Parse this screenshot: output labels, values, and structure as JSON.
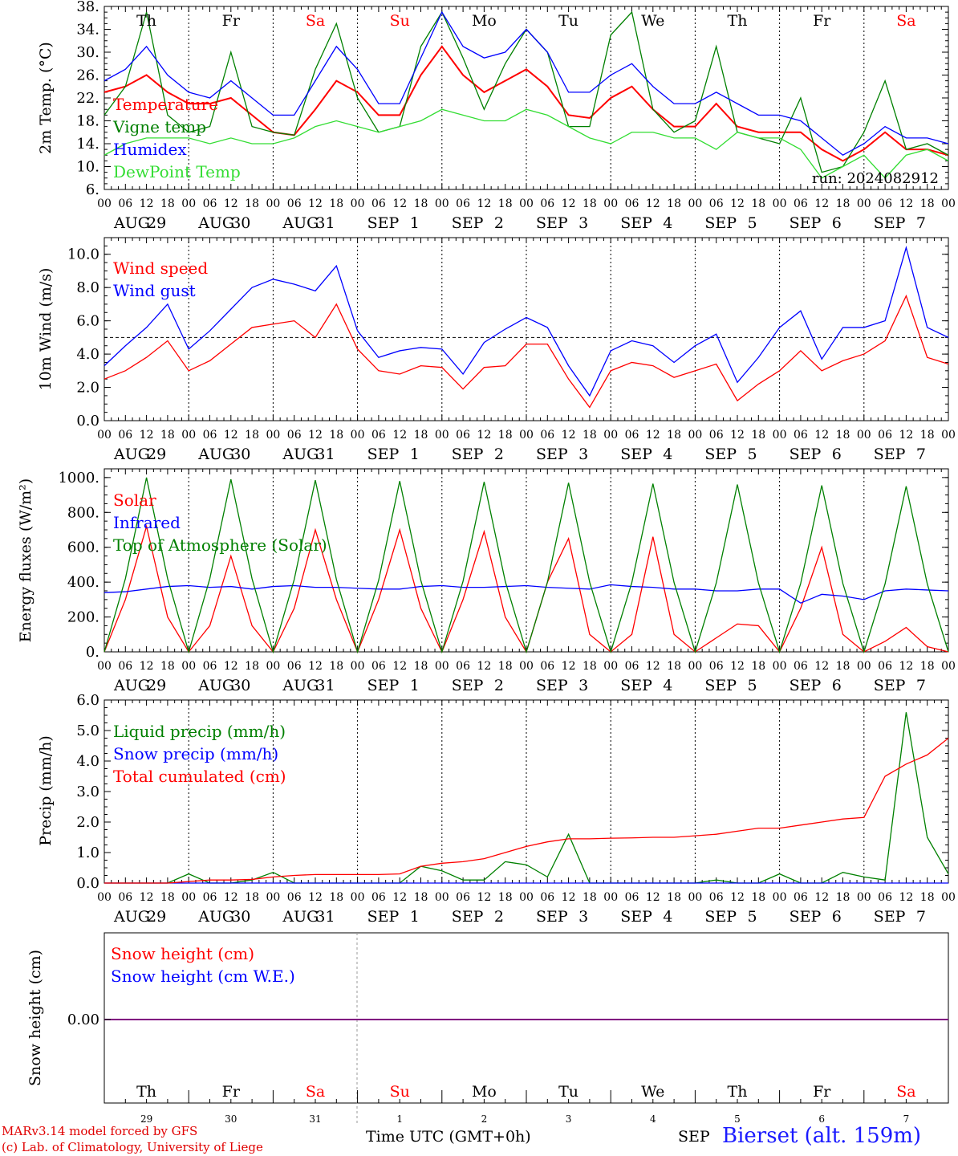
{
  "days": {
    "weekdays": [
      "Th",
      "Fr",
      "Sa",
      "Su",
      "Mo",
      "Tu",
      "We",
      "Th",
      "Fr",
      "Sa"
    ],
    "weekend_flags": [
      false,
      false,
      true,
      true,
      false,
      false,
      false,
      false,
      false,
      true
    ],
    "dates": [
      "AUG 29",
      "AUG 30",
      "AUG 31",
      "SEP 1",
      "SEP 2",
      "SEP 3",
      "SEP 4",
      "SEP 5",
      "SEP 6",
      "SEP 7"
    ],
    "day_numbers": [
      "29",
      "30",
      "31",
      "1",
      "2",
      "3",
      "4",
      "5",
      "6",
      "7"
    ],
    "hour_ticks": [
      "00",
      "06",
      "12",
      "18"
    ],
    "last_tick": "00"
  },
  "colors": {
    "red": "#ff0000",
    "green": "#008000",
    "blue": "#0000ff",
    "lightgreen": "#33dd33",
    "weekend": "#ff0000",
    "purple": "#800080"
  },
  "footer": {
    "credit_line1": "MARv3.14 model forced by GFS",
    "credit_line2": "(c) Lab. of Climatology, University of Liege",
    "time_label": "Time UTC (GMT+0h)",
    "month_label": "SEP",
    "station": "Bierset (alt. 159m)"
  },
  "chart_data": [
    {
      "type": "line",
      "ylabel": "2m Temp. (°C)",
      "ylim": [
        6,
        38
      ],
      "yticks": [
        "6.",
        "10.",
        "14.",
        "18.",
        "22.",
        "26.",
        "30.",
        "34.",
        "38."
      ],
      "annotation": "run: 2024082912",
      "x_hours": [
        0,
        6,
        12,
        18,
        24,
        30,
        36,
        42,
        48,
        54,
        60,
        66,
        72,
        78,
        84,
        90,
        96,
        102,
        108,
        114,
        120,
        126,
        132,
        138,
        144,
        150,
        156,
        162,
        168,
        174,
        180,
        186,
        192,
        198,
        204,
        210,
        216,
        222,
        228,
        234,
        240
      ],
      "series": [
        {
          "name": "Temperature",
          "color": "red",
          "values": [
            23,
            24,
            26,
            23,
            21,
            21,
            22,
            19,
            16,
            15.5,
            20,
            25,
            23,
            19,
            19,
            26,
            31,
            26,
            23,
            25,
            27,
            24,
            19,
            18.5,
            22,
            24,
            20,
            17,
            17,
            21,
            17,
            16,
            16,
            16,
            13,
            11,
            13,
            16,
            13,
            13,
            12
          ]
        },
        {
          "name": "Vigne temp",
          "color": "green",
          "values": [
            19,
            24,
            37,
            19,
            16,
            17,
            30,
            17,
            16,
            15.5,
            27,
            35,
            22,
            16,
            17,
            31,
            37,
            29,
            20,
            28,
            34,
            30,
            17,
            17,
            33,
            37,
            20,
            16,
            18,
            31,
            16,
            15,
            14,
            22,
            9,
            10,
            16,
            25,
            13,
            14,
            12
          ]
        },
        {
          "name": "Humidex",
          "color": "blue",
          "values": [
            25,
            27,
            31,
            26,
            23,
            22,
            25,
            22,
            19,
            19,
            25,
            31,
            27,
            21,
            21,
            29,
            37,
            31,
            29,
            30,
            34,
            30,
            23,
            23,
            26,
            28,
            24,
            21,
            21,
            23,
            21,
            19,
            19,
            18,
            15,
            12,
            14,
            17,
            15,
            15,
            14
          ]
        },
        {
          "name": "DewPoint Temp",
          "color": "lightgreen",
          "values": [
            12,
            14,
            15,
            15,
            15,
            14,
            15,
            14,
            14,
            15,
            17,
            18,
            17,
            16,
            17,
            18,
            20,
            19,
            18,
            18,
            20,
            19,
            17,
            15,
            14,
            16,
            16,
            15,
            15,
            13,
            16,
            15,
            15,
            13,
            8,
            10,
            12,
            8,
            12,
            13,
            11
          ]
        }
      ]
    },
    {
      "type": "line",
      "ylabel": "10m Wind (m/s)",
      "ylim": [
        0,
        11
      ],
      "yticks": [
        "0.0",
        "2.0",
        "4.0",
        "6.0",
        "8.0",
        "10.0"
      ],
      "reference_line": 5.0,
      "x_hours": [
        0,
        6,
        12,
        18,
        24,
        30,
        36,
        42,
        48,
        54,
        60,
        66,
        72,
        78,
        84,
        90,
        96,
        102,
        108,
        114,
        120,
        126,
        132,
        138,
        144,
        150,
        156,
        162,
        168,
        174,
        180,
        186,
        192,
        198,
        204,
        210,
        216,
        222,
        228,
        234,
        240
      ],
      "series": [
        {
          "name": "Wind speed",
          "color": "red",
          "values": [
            2.5,
            3.0,
            3.8,
            4.8,
            3.0,
            3.6,
            4.6,
            5.6,
            5.8,
            6.0,
            5.0,
            7.0,
            4.3,
            3.0,
            2.8,
            3.3,
            3.2,
            1.9,
            3.2,
            3.3,
            4.6,
            4.6,
            2.5,
            0.8,
            3.0,
            3.5,
            3.3,
            2.6,
            3.0,
            3.4,
            1.2,
            2.2,
            3.0,
            4.2,
            3.0,
            3.6,
            4.0,
            4.8,
            7.5,
            3.8,
            3.4
          ]
        },
        {
          "name": "Wind gust",
          "color": "blue",
          "values": [
            3.3,
            4.5,
            5.6,
            7.0,
            4.3,
            5.4,
            6.7,
            8.0,
            8.5,
            8.2,
            7.8,
            9.3,
            5.4,
            3.8,
            4.2,
            4.4,
            4.3,
            2.8,
            4.7,
            5.5,
            6.2,
            5.6,
            3.3,
            1.5,
            4.2,
            4.8,
            4.5,
            3.5,
            4.5,
            5.2,
            2.3,
            3.8,
            5.6,
            6.6,
            3.7,
            5.6,
            5.6,
            6.0,
            10.4,
            5.6,
            5.0
          ]
        }
      ]
    },
    {
      "type": "line",
      "ylabel": "Energy fluxes (W/m²)",
      "ylim": [
        0,
        1050
      ],
      "yticks": [
        "0.",
        "200.",
        "400.",
        "600.",
        "800.",
        "1000."
      ],
      "x_hours": [
        0,
        6,
        12,
        18,
        24,
        30,
        36,
        42,
        48,
        54,
        60,
        66,
        72,
        78,
        84,
        90,
        96,
        102,
        108,
        114,
        120,
        126,
        132,
        138,
        144,
        150,
        156,
        162,
        168,
        174,
        180,
        186,
        192,
        198,
        204,
        210,
        216,
        222,
        228,
        234,
        240
      ],
      "series": [
        {
          "name": "Solar",
          "color": "red",
          "values": [
            0,
            300,
            720,
            200,
            0,
            150,
            550,
            150,
            0,
            250,
            700,
            300,
            0,
            300,
            700,
            250,
            0,
            300,
            690,
            200,
            0,
            400,
            650,
            100,
            0,
            100,
            660,
            100,
            0,
            80,
            160,
            150,
            0,
            250,
            600,
            100,
            0,
            60,
            140,
            30,
            0
          ]
        },
        {
          "name": "Infrared",
          "color": "blue",
          "values": [
            340,
            345,
            360,
            375,
            380,
            370,
            375,
            360,
            375,
            380,
            370,
            370,
            365,
            360,
            360,
            375,
            380,
            370,
            370,
            375,
            380,
            370,
            365,
            360,
            385,
            375,
            370,
            360,
            360,
            350,
            350,
            360,
            360,
            280,
            330,
            320,
            300,
            350,
            360,
            355,
            350
          ]
        },
        {
          "name": "Top of Atmosphere (Solar)",
          "color": "green",
          "values": [
            0,
            420,
            1000,
            420,
            0,
            420,
            990,
            420,
            0,
            415,
            985,
            415,
            0,
            410,
            980,
            410,
            0,
            405,
            975,
            405,
            0,
            400,
            970,
            400,
            0,
            398,
            965,
            398,
            0,
            395,
            960,
            395,
            0,
            392,
            955,
            392,
            0,
            390,
            950,
            390,
            0
          ]
        }
      ]
    },
    {
      "type": "line",
      "ylabel": "Precip (mm/h)",
      "ylim": [
        0,
        6
      ],
      "yticks": [
        "0.0",
        "1.0",
        "2.0",
        "3.0",
        "4.0",
        "5.0",
        "6.0"
      ],
      "x_hours": [
        0,
        6,
        12,
        18,
        24,
        30,
        36,
        42,
        48,
        54,
        60,
        66,
        72,
        78,
        84,
        90,
        96,
        102,
        108,
        114,
        120,
        126,
        132,
        138,
        144,
        150,
        156,
        162,
        168,
        174,
        180,
        186,
        192,
        198,
        204,
        210,
        216,
        222,
        228,
        234,
        240
      ],
      "series": [
        {
          "name": "Liquid precip (mm/h)",
          "color": "green",
          "values": [
            0,
            0,
            0,
            0,
            0.3,
            0,
            0,
            0.1,
            0.35,
            0,
            0,
            0,
            0,
            0,
            0,
            0.55,
            0.4,
            0.1,
            0.1,
            0.7,
            0.6,
            0.2,
            1.6,
            0,
            0,
            0,
            0,
            0,
            0,
            0.1,
            0,
            0,
            0.3,
            0,
            0,
            0.35,
            0.2,
            0.1,
            5.6,
            1.5,
            0.3
          ]
        },
        {
          "name": "Snow precip (mm/h)",
          "color": "blue",
          "values": [
            0,
            0,
            0,
            0,
            0,
            0,
            0,
            0,
            0,
            0,
            0,
            0,
            0,
            0,
            0,
            0,
            0,
            0,
            0,
            0,
            0,
            0,
            0,
            0,
            0,
            0,
            0,
            0,
            0,
            0,
            0,
            0,
            0,
            0,
            0,
            0,
            0,
            0,
            0,
            0,
            0
          ]
        },
        {
          "name": "Total cumulated (cm)",
          "color": "red",
          "values": [
            0,
            0,
            0,
            0,
            0.05,
            0.1,
            0.1,
            0.12,
            0.2,
            0.25,
            0.28,
            0.28,
            0.28,
            0.28,
            0.3,
            0.55,
            0.65,
            0.7,
            0.8,
            1.0,
            1.2,
            1.35,
            1.45,
            1.45,
            1.47,
            1.48,
            1.5,
            1.5,
            1.55,
            1.6,
            1.7,
            1.8,
            1.8,
            1.9,
            2.0,
            2.1,
            2.15,
            3.5,
            3.9,
            4.2,
            4.75
          ]
        }
      ]
    },
    {
      "type": "line",
      "ylabel": "Snow height (cm)",
      "yticks": [
        "0.00"
      ],
      "series": [
        {
          "name": "Snow height (cm)",
          "color": "red",
          "values": [
            0,
            0
          ]
        },
        {
          "name": "Snow height (cm W.E.)",
          "color": "blue",
          "values": [
            0,
            0
          ]
        }
      ]
    }
  ]
}
